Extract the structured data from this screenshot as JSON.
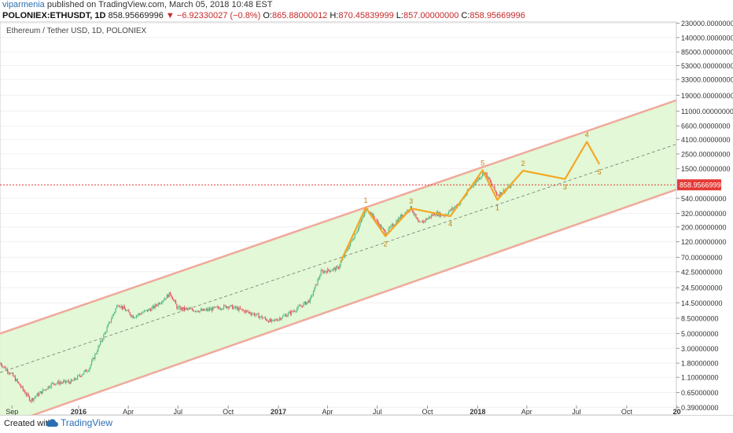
{
  "header": {
    "author": "viparmenia",
    "published_text": "published on TradingView.com, March 05, 2018 10:48 EST",
    "symbol": "POLONIEX:ETHUSDT, 1D",
    "last": "858.95669996",
    "change": "▼ −6.92330027 (−0.8%)",
    "o_label": "O:",
    "o": "865.88000012",
    "h_label": "H:",
    "h": "870.45839999",
    "l_label": "L:",
    "l": "857.00000000",
    "c_label": "C:",
    "c": "858.95669996"
  },
  "chart_title": "Ethereum / Tether USD, 1D, POLONIEX",
  "footer": {
    "created_with": "Created with",
    "brand": "TradingView"
  },
  "colors": {
    "channel_fill": "#dff7d2",
    "channel_line": "#f0a99b",
    "wave": "#f5a623",
    "candle_up": "#53b987",
    "candle_down": "#eb4d5c",
    "price_line": "#e53935",
    "mid_line": "#777777"
  },
  "chart_data": {
    "type": "line",
    "title": "Ethereum / Tether USD, 1D, POLONIEX",
    "y_scale": "log",
    "ylim": [
      0.3,
      240000
    ],
    "x_ticks": [
      "Sep",
      "2016",
      "Apr",
      "Jul",
      "Oct",
      "2017",
      "Apr",
      "Jul",
      "Oct",
      "2018",
      "Apr",
      "Jul",
      "Oct",
      "20"
    ],
    "y_ticks": [
      "230000.00000000",
      "140000.00000000",
      "85000.00000000",
      "53000.00000000",
      "33000.00000000",
      "19000.00000000",
      "11000.00000000",
      "6600.00000000",
      "4100.00000000",
      "2500.00000000",
      "1500.00000000",
      "858.95669996",
      "540.00000000",
      "320.00000000",
      "200.00000000",
      "120.00000000",
      "70.00000000",
      "42.50000000",
      "24.50000000",
      "14.50000000",
      "8.50000000",
      "5.00000000",
      "3.00000000",
      "1.80000000",
      "1.10000000",
      "0.65000000",
      "0.39000000"
    ],
    "last_price": 858.95669996,
    "price_series": [
      {
        "x": "2015-08-10",
        "y": 1.8
      },
      {
        "x": "2015-09-01",
        "y": 1.2
      },
      {
        "x": "2015-10-05",
        "y": 0.5
      },
      {
        "x": "2015-11-15",
        "y": 0.9
      },
      {
        "x": "2015-12-20",
        "y": 0.95
      },
      {
        "x": "2016-01-20",
        "y": 1.5
      },
      {
        "x": "2016-02-15",
        "y": 4.5
      },
      {
        "x": "2016-03-13",
        "y": 14
      },
      {
        "x": "2016-04-10",
        "y": 9
      },
      {
        "x": "2016-05-15",
        "y": 12
      },
      {
        "x": "2016-06-17",
        "y": 20
      },
      {
        "x": "2016-06-30",
        "y": 12
      },
      {
        "x": "2016-08-15",
        "y": 11
      },
      {
        "x": "2016-10-01",
        "y": 13
      },
      {
        "x": "2016-11-15",
        "y": 10
      },
      {
        "x": "2016-12-20",
        "y": 7.5
      },
      {
        "x": "2017-01-25",
        "y": 10.5
      },
      {
        "x": "2017-02-28",
        "y": 16
      },
      {
        "x": "2017-03-20",
        "y": 42
      },
      {
        "x": "2017-04-20",
        "y": 48
      },
      {
        "x": "2017-05-25",
        "y": 180
      },
      {
        "x": "2017-06-12",
        "y": 380
      },
      {
        "x": "2017-07-16",
        "y": 160
      },
      {
        "x": "2017-08-15",
        "y": 300
      },
      {
        "x": "2017-09-01",
        "y": 390
      },
      {
        "x": "2017-09-15",
        "y": 220
      },
      {
        "x": "2017-10-15",
        "y": 320
      },
      {
        "x": "2017-11-01",
        "y": 300
      },
      {
        "x": "2017-11-30",
        "y": 470
      },
      {
        "x": "2017-12-20",
        "y": 800
      },
      {
        "x": "2018-01-13",
        "y": 1350
      },
      {
        "x": "2018-02-06",
        "y": 600
      },
      {
        "x": "2018-03-05",
        "y": 859
      }
    ],
    "wave_count": [
      {
        "x": "2017-04-25",
        "y": 60,
        "label": ""
      },
      {
        "x": "2017-06-10",
        "y": 390,
        "label": "1"
      },
      {
        "x": "2017-07-16",
        "y": 145,
        "label": "2"
      },
      {
        "x": "2017-09-01",
        "y": 380,
        "label": "3"
      },
      {
        "x": "2017-11-12",
        "y": 290,
        "label": "4"
      },
      {
        "x": "2018-01-10",
        "y": 1420,
        "label": "5"
      },
      {
        "x": "2018-02-06",
        "y": 510,
        "label": "1"
      },
      {
        "x": "2018-03-25",
        "y": 1400,
        "label": "2"
      },
      {
        "x": "2018-06-10",
        "y": 1050,
        "label": "3"
      },
      {
        "x": "2018-07-20",
        "y": 3800,
        "label": "4"
      },
      {
        "x": "2018-08-12",
        "y": 1750,
        "label": "5"
      }
    ],
    "channel_upper": [
      {
        "x": "2015-08-10",
        "y": 5
      },
      {
        "x": "2018-12-31",
        "y": 16000
      }
    ],
    "channel_mid": [
      {
        "x": "2015-08-10",
        "y": 1.3
      },
      {
        "x": "2018-12-31",
        "y": 3500
      }
    ],
    "channel_lower": [
      {
        "x": "2015-08-10",
        "y": 0.2
      },
      {
        "x": "2018-12-31",
        "y": 730
      }
    ]
  }
}
